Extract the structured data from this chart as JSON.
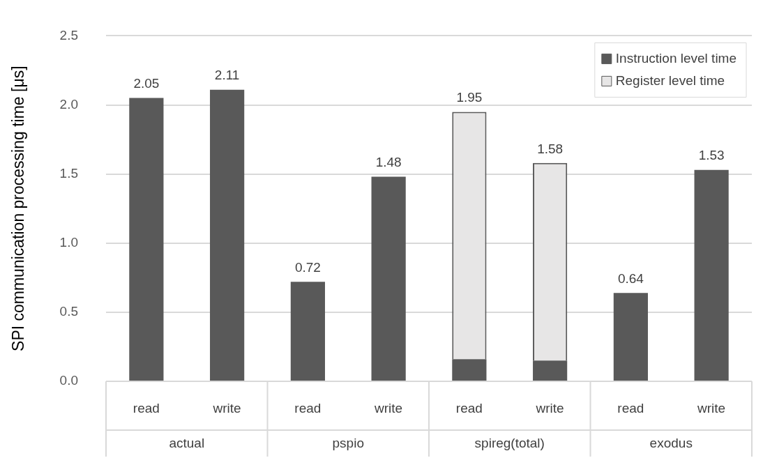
{
  "chart_data": {
    "type": "bar",
    "stacked": true,
    "ylabel": "SPI communication processing time [μs]",
    "categories": [
      "read",
      "write",
      "read",
      "write",
      "read",
      "write",
      "read",
      "write"
    ],
    "series": [
      {
        "name": "Instruction level time",
        "color": "#595959",
        "values": [
          2.05,
          2.11,
          0.72,
          1.48,
          0.16,
          0.15,
          0.64,
          1.53
        ]
      },
      {
        "name": "Register level time",
        "color": "#e7e6e6",
        "values": [
          null,
          null,
          null,
          null,
          1.79,
          1.43,
          null,
          null
        ]
      }
    ],
    "totals": [
      "2.05",
      "2.11",
      "0.72",
      "1.48",
      "1.95",
      "1.58",
      "0.64",
      "1.53"
    ],
    "annotations": [
      "actual",
      "pspio",
      "spireg(total)",
      "exodus"
    ],
    "ylim": [
      0,
      2.5
    ],
    "yticks": [
      {
        "value": 0,
        "label": "0.0"
      },
      {
        "value": 0.5,
        "label": "0.5"
      },
      {
        "value": 1,
        "label": "1.0"
      },
      {
        "value": 1.5,
        "label": "1.5"
      },
      {
        "value": 2,
        "label": "2.0"
      },
      {
        "value": 2.5,
        "label": "2.5"
      }
    ],
    "grid": "y",
    "legend": "top right"
  }
}
